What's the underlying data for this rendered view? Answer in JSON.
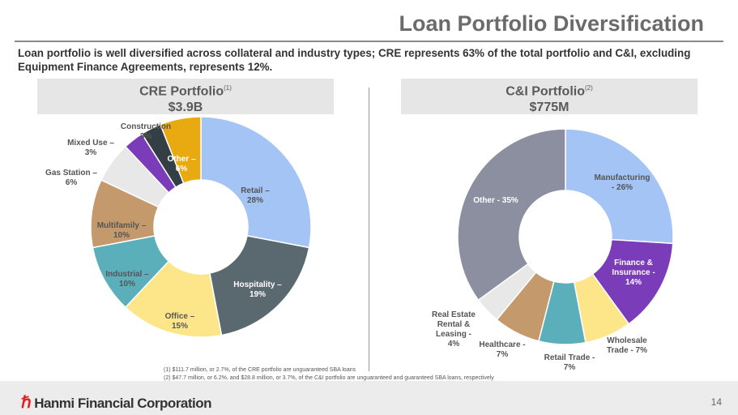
{
  "title": "Loan Portfolio Diversification",
  "subtitle": "Loan portfolio is well diversified across collateral and industry types; CRE represents 63% of the total portfolio and C&I, excluding Equipment Finance Agreements, represents 12%.",
  "cre_header": {
    "title": "CRE Portfolio",
    "note": "(1)",
    "amount": "$3.9B"
  },
  "ci_header": {
    "title": "C&I Portfolio",
    "note": "(2)",
    "amount": "$775M"
  },
  "footnotes": [
    "(1)   $111.7 million, or 2.7%, of the CRE portfolio are unguaranteed SBA loans",
    "(2)   $47.7 million, or 6.2%, and $28.8 million, or 3.7%, of the C&I portfolio are unguaranteed and guaranteed SBA loans, respectively"
  ],
  "footer": {
    "logo": "Hanmi Financial Corporation",
    "page": "14",
    "brand_color": "#e02020"
  },
  "chart_data": [
    {
      "type": "pie",
      "donut": true,
      "title": "CRE Portfolio",
      "order": "clockwise from top",
      "categories": [
        "Retail",
        "Hospitality",
        "Office",
        "Industrial",
        "Multifamily",
        "Gas Station",
        "Mixed Use",
        "Construction",
        "Other"
      ],
      "values": [
        28,
        19,
        15,
        10,
        10,
        6,
        3,
        3,
        6
      ],
      "labels": [
        "Retail –\n28%",
        "Hospitality –\n19%",
        "Office –\n15%",
        "Industrial –\n10%",
        "Multifamily –\n10%",
        "Gas Station –\n6%",
        "Mixed Use –\n3%",
        "Construction\n3%",
        "Other –\n6%"
      ],
      "colors": [
        "#a3c4f5",
        "#5a6870",
        "#fde68a",
        "#5aafba",
        "#c49a6c",
        "#e8e8e8",
        "#7a3cb8",
        "#343f45",
        "#e8aa10"
      ]
    },
    {
      "type": "pie",
      "donut": true,
      "title": "C&I Portfolio",
      "order": "clockwise from top",
      "categories": [
        "Manufacturing",
        "Finance & Insurance",
        "Wholesale Trade",
        "Retail Trade",
        "Healthcare",
        "Real Estate Rental & Leasing",
        "Other"
      ],
      "values": [
        26,
        14,
        7,
        7,
        7,
        4,
        35
      ],
      "labels": [
        "Manufacturing\n- 26%",
        "Finance &\nInsurance -\n14%",
        "Wholesale\nTrade - 7%",
        "Retail Trade -\n7%",
        "Healthcare -\n7%",
        "Real Estate\nRental &\nLeasing -\n4%",
        "Other -  35%"
      ],
      "colors": [
        "#a3c4f5",
        "#7a3cb8",
        "#fde68a",
        "#5aafba",
        "#c49a6c",
        "#e8e8e8",
        "#8c8fa0"
      ]
    }
  ]
}
